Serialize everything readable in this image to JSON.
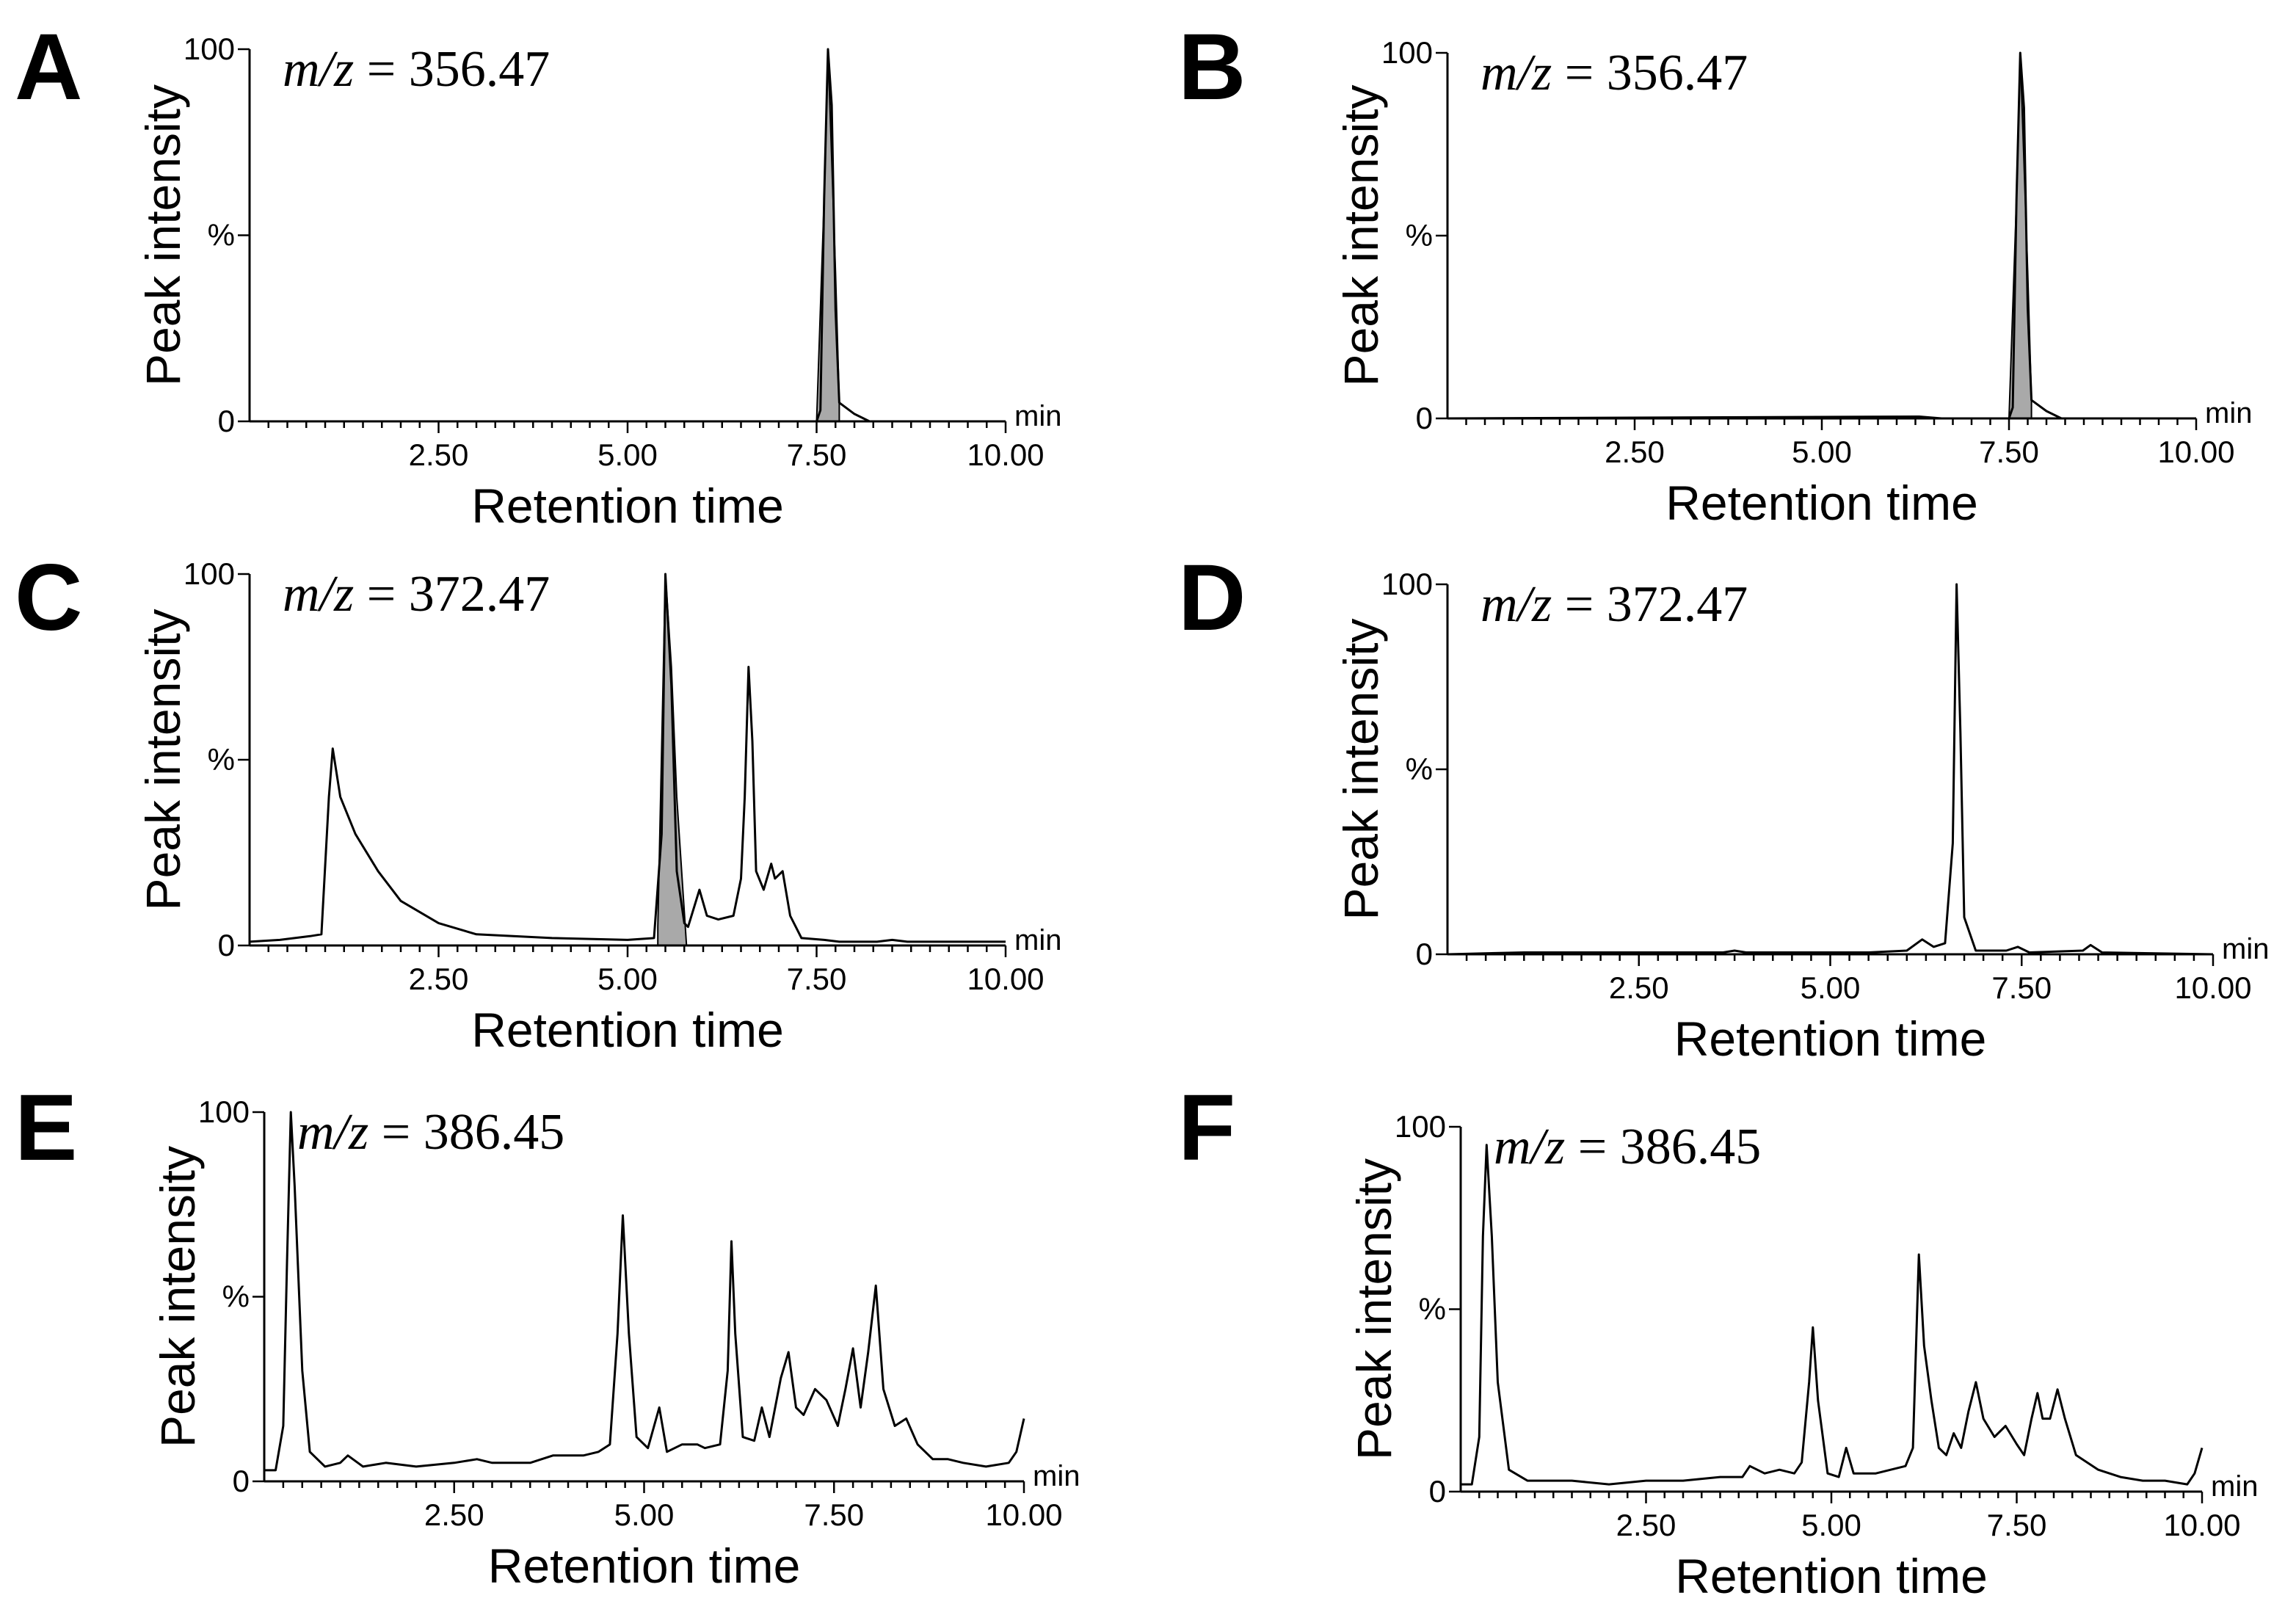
{
  "figure": {
    "style": {
      "trace_color": "#000000",
      "highlight_fill": "#a9a9a9",
      "background": "#ffffff"
    }
  },
  "chart_data": [
    {
      "panel": "A",
      "type": "line",
      "annotation_prefix": "m/z",
      "annotation_value": "356.47",
      "xlabel": "Retention time",
      "ylabel": "Peak intensity",
      "x_unit": "min",
      "xlim": [
        0,
        10
      ],
      "ylim": [
        0,
        100
      ],
      "x_ticks": [
        "2.50",
        "5.00",
        "7.50",
        "10.00"
      ],
      "y_ticks": [
        "0",
        "%",
        "100"
      ],
      "trace": [
        [
          0.0,
          0
        ],
        [
          7.5,
          0
        ],
        [
          7.55,
          3
        ],
        [
          7.6,
          60
        ],
        [
          7.65,
          100
        ],
        [
          7.7,
          85
        ],
        [
          7.75,
          30
        ],
        [
          7.8,
          5
        ],
        [
          8.0,
          2
        ],
        [
          8.2,
          0
        ],
        [
          10.0,
          0
        ]
      ],
      "highlight": [
        [
          7.5,
          0
        ],
        [
          7.6,
          60
        ],
        [
          7.65,
          100
        ],
        [
          7.75,
          40
        ],
        [
          7.8,
          5
        ],
        [
          7.8,
          0
        ]
      ]
    },
    {
      "panel": "B",
      "type": "line",
      "annotation_prefix": "m/z",
      "annotation_value": "356.47",
      "xlabel": "Retention time",
      "ylabel": "Peak intensity",
      "x_unit": "min",
      "xlim": [
        0,
        10
      ],
      "ylim": [
        0,
        100
      ],
      "x_ticks": [
        "2.50",
        "5.00",
        "7.50",
        "10.00"
      ],
      "y_ticks": [
        "0",
        "%",
        "100"
      ],
      "trace": [
        [
          0.0,
          0
        ],
        [
          6.3,
          0.5
        ],
        [
          6.6,
          0
        ],
        [
          7.5,
          0
        ],
        [
          7.55,
          3
        ],
        [
          7.6,
          60
        ],
        [
          7.65,
          100
        ],
        [
          7.7,
          85
        ],
        [
          7.75,
          30
        ],
        [
          7.8,
          5
        ],
        [
          8.0,
          2
        ],
        [
          8.2,
          0
        ],
        [
          10.0,
          0
        ]
      ],
      "highlight": [
        [
          7.5,
          0
        ],
        [
          7.6,
          60
        ],
        [
          7.65,
          100
        ],
        [
          7.75,
          40
        ],
        [
          7.8,
          5
        ],
        [
          7.8,
          0
        ]
      ]
    },
    {
      "panel": "C",
      "type": "line",
      "annotation_prefix": "m/z",
      "annotation_value": "372.47",
      "xlabel": "Retention time",
      "ylabel": "Peak intensity",
      "x_unit": "min",
      "xlim": [
        0,
        10
      ],
      "ylim": [
        0,
        100
      ],
      "x_ticks": [
        "2.50",
        "5.00",
        "7.50",
        "10.00"
      ],
      "y_ticks": [
        "0",
        "%",
        "100"
      ],
      "trace": [
        [
          0.0,
          1
        ],
        [
          0.4,
          1.5
        ],
        [
          0.8,
          2.5
        ],
        [
          0.95,
          3
        ],
        [
          1.05,
          40
        ],
        [
          1.1,
          53
        ],
        [
          1.2,
          40
        ],
        [
          1.4,
          30
        ],
        [
          1.7,
          20
        ],
        [
          2.0,
          12
        ],
        [
          2.5,
          6
        ],
        [
          3.0,
          3
        ],
        [
          4.0,
          2
        ],
        [
          5.0,
          1.5
        ],
        [
          5.35,
          2
        ],
        [
          5.45,
          30
        ],
        [
          5.5,
          100
        ],
        [
          5.58,
          70
        ],
        [
          5.65,
          20
        ],
        [
          5.75,
          6
        ],
        [
          5.8,
          5
        ],
        [
          5.95,
          15
        ],
        [
          6.05,
          8
        ],
        [
          6.2,
          7
        ],
        [
          6.4,
          8
        ],
        [
          6.5,
          18
        ],
        [
          6.55,
          40
        ],
        [
          6.6,
          75
        ],
        [
          6.65,
          55
        ],
        [
          6.7,
          20
        ],
        [
          6.8,
          15
        ],
        [
          6.9,
          22
        ],
        [
          6.95,
          18
        ],
        [
          7.05,
          20
        ],
        [
          7.15,
          8
        ],
        [
          7.3,
          2
        ],
        [
          7.6,
          1.5
        ],
        [
          7.8,
          1
        ],
        [
          8.3,
          1
        ],
        [
          8.5,
          1.5
        ],
        [
          8.7,
          1
        ],
        [
          10.0,
          1
        ]
      ],
      "highlight": [
        [
          5.4,
          5
        ],
        [
          5.5,
          100
        ],
        [
          5.58,
          75
        ],
        [
          5.65,
          40
        ],
        [
          5.78,
          0
        ],
        [
          5.4,
          0
        ]
      ]
    },
    {
      "panel": "D",
      "type": "line",
      "annotation_prefix": "m/z",
      "annotation_value": "372.47",
      "xlabel": "Retention time",
      "ylabel": "Peak intensity",
      "x_unit": "min",
      "xlim": [
        0,
        10
      ],
      "ylim": [
        0,
        100
      ],
      "x_ticks": [
        "2.50",
        "5.00",
        "7.50",
        "10.00"
      ],
      "y_ticks": [
        "0",
        "%",
        "100"
      ],
      "trace": [
        [
          0.0,
          0
        ],
        [
          1.0,
          0.5
        ],
        [
          2.0,
          0.5
        ],
        [
          3.6,
          0.5
        ],
        [
          3.75,
          1
        ],
        [
          3.9,
          0.5
        ],
        [
          5.5,
          0.5
        ],
        [
          6.0,
          1
        ],
        [
          6.2,
          4
        ],
        [
          6.35,
          2
        ],
        [
          6.5,
          3
        ],
        [
          6.6,
          30
        ],
        [
          6.65,
          100
        ],
        [
          6.7,
          60
        ],
        [
          6.75,
          10
        ],
        [
          6.9,
          1
        ],
        [
          7.3,
          1
        ],
        [
          7.45,
          2
        ],
        [
          7.6,
          0.5
        ],
        [
          8.3,
          1
        ],
        [
          8.4,
          2.5
        ],
        [
          8.55,
          0.5
        ],
        [
          10.0,
          0
        ]
      ],
      "highlight": []
    },
    {
      "panel": "E",
      "type": "line",
      "annotation_prefix": "m/z",
      "annotation_value": "386.45",
      "xlabel": "Retention time",
      "ylabel": "Peak intensity",
      "x_unit": "min",
      "xlim": [
        0,
        10
      ],
      "ylim": [
        0,
        100
      ],
      "x_ticks": [
        "2.50",
        "5.00",
        "7.50",
        "10.00"
      ],
      "y_ticks": [
        "0",
        "%",
        "100"
      ],
      "trace": [
        [
          0.0,
          3
        ],
        [
          0.15,
          3
        ],
        [
          0.25,
          15
        ],
        [
          0.3,
          60
        ],
        [
          0.35,
          100
        ],
        [
          0.4,
          80
        ],
        [
          0.5,
          30
        ],
        [
          0.6,
          8
        ],
        [
          0.8,
          4
        ],
        [
          1.0,
          5
        ],
        [
          1.1,
          7
        ],
        [
          1.3,
          4
        ],
        [
          1.6,
          5
        ],
        [
          2.0,
          4
        ],
        [
          2.5,
          5
        ],
        [
          2.8,
          6
        ],
        [
          3.0,
          5
        ],
        [
          3.5,
          5
        ],
        [
          3.8,
          7
        ],
        [
          4.2,
          7
        ],
        [
          4.4,
          8
        ],
        [
          4.55,
          10
        ],
        [
          4.65,
          40
        ],
        [
          4.72,
          72
        ],
        [
          4.8,
          40
        ],
        [
          4.9,
          12
        ],
        [
          5.05,
          9
        ],
        [
          5.2,
          20
        ],
        [
          5.3,
          8
        ],
        [
          5.5,
          10
        ],
        [
          5.7,
          10
        ],
        [
          5.8,
          9
        ],
        [
          6.0,
          10
        ],
        [
          6.1,
          30
        ],
        [
          6.15,
          65
        ],
        [
          6.2,
          40
        ],
        [
          6.3,
          12
        ],
        [
          6.45,
          11
        ],
        [
          6.55,
          20
        ],
        [
          6.65,
          12
        ],
        [
          6.8,
          28
        ],
        [
          6.9,
          35
        ],
        [
          7.0,
          20
        ],
        [
          7.1,
          18
        ],
        [
          7.25,
          25
        ],
        [
          7.4,
          22
        ],
        [
          7.55,
          15
        ],
        [
          7.65,
          25
        ],
        [
          7.75,
          36
        ],
        [
          7.85,
          20
        ],
        [
          7.95,
          35
        ],
        [
          8.05,
          53
        ],
        [
          8.15,
          25
        ],
        [
          8.3,
          15
        ],
        [
          8.45,
          17
        ],
        [
          8.6,
          10
        ],
        [
          8.8,
          6
        ],
        [
          9.0,
          6
        ],
        [
          9.2,
          5
        ],
        [
          9.5,
          4
        ],
        [
          9.8,
          5
        ],
        [
          9.9,
          8
        ],
        [
          10.0,
          17
        ]
      ],
      "highlight": []
    },
    {
      "panel": "F",
      "type": "line",
      "annotation_prefix": "m/z",
      "annotation_value": "386.45",
      "xlabel": "Retention time",
      "ylabel": "Peak intensity",
      "x_unit": "min",
      "xlim": [
        0,
        10
      ],
      "ylim": [
        0,
        100
      ],
      "x_ticks": [
        "2.50",
        "5.00",
        "7.50",
        "10.00"
      ],
      "y_ticks": [
        "0",
        "%",
        "100"
      ],
      "trace": [
        [
          0.0,
          2
        ],
        [
          0.15,
          2
        ],
        [
          0.25,
          15
        ],
        [
          0.3,
          70
        ],
        [
          0.35,
          95
        ],
        [
          0.42,
          70
        ],
        [
          0.5,
          30
        ],
        [
          0.65,
          6
        ],
        [
          0.9,
          3
        ],
        [
          1.5,
          3
        ],
        [
          2.0,
          2
        ],
        [
          2.5,
          3
        ],
        [
          3.0,
          3
        ],
        [
          3.5,
          4
        ],
        [
          3.8,
          4
        ],
        [
          3.9,
          7
        ],
        [
          4.1,
          5
        ],
        [
          4.3,
          6
        ],
        [
          4.5,
          5
        ],
        [
          4.6,
          8
        ],
        [
          4.7,
          30
        ],
        [
          4.75,
          45
        ],
        [
          4.82,
          25
        ],
        [
          4.95,
          5
        ],
        [
          5.1,
          4
        ],
        [
          5.2,
          12
        ],
        [
          5.3,
          5
        ],
        [
          5.6,
          5
        ],
        [
          5.8,
          6
        ],
        [
          6.0,
          7
        ],
        [
          6.1,
          12
        ],
        [
          6.18,
          65
        ],
        [
          6.25,
          40
        ],
        [
          6.35,
          25
        ],
        [
          6.45,
          12
        ],
        [
          6.55,
          10
        ],
        [
          6.65,
          16
        ],
        [
          6.75,
          12
        ],
        [
          6.85,
          22
        ],
        [
          6.95,
          30
        ],
        [
          7.05,
          20
        ],
        [
          7.2,
          15
        ],
        [
          7.35,
          18
        ],
        [
          7.5,
          13
        ],
        [
          7.6,
          10
        ],
        [
          7.7,
          20
        ],
        [
          7.78,
          27
        ],
        [
          7.85,
          20
        ],
        [
          7.95,
          20
        ],
        [
          8.05,
          28
        ],
        [
          8.15,
          20
        ],
        [
          8.3,
          10
        ],
        [
          8.6,
          6
        ],
        [
          8.9,
          4
        ],
        [
          9.2,
          3
        ],
        [
          9.5,
          3
        ],
        [
          9.8,
          2
        ],
        [
          9.9,
          5
        ],
        [
          10.0,
          12
        ]
      ],
      "highlight": []
    }
  ]
}
